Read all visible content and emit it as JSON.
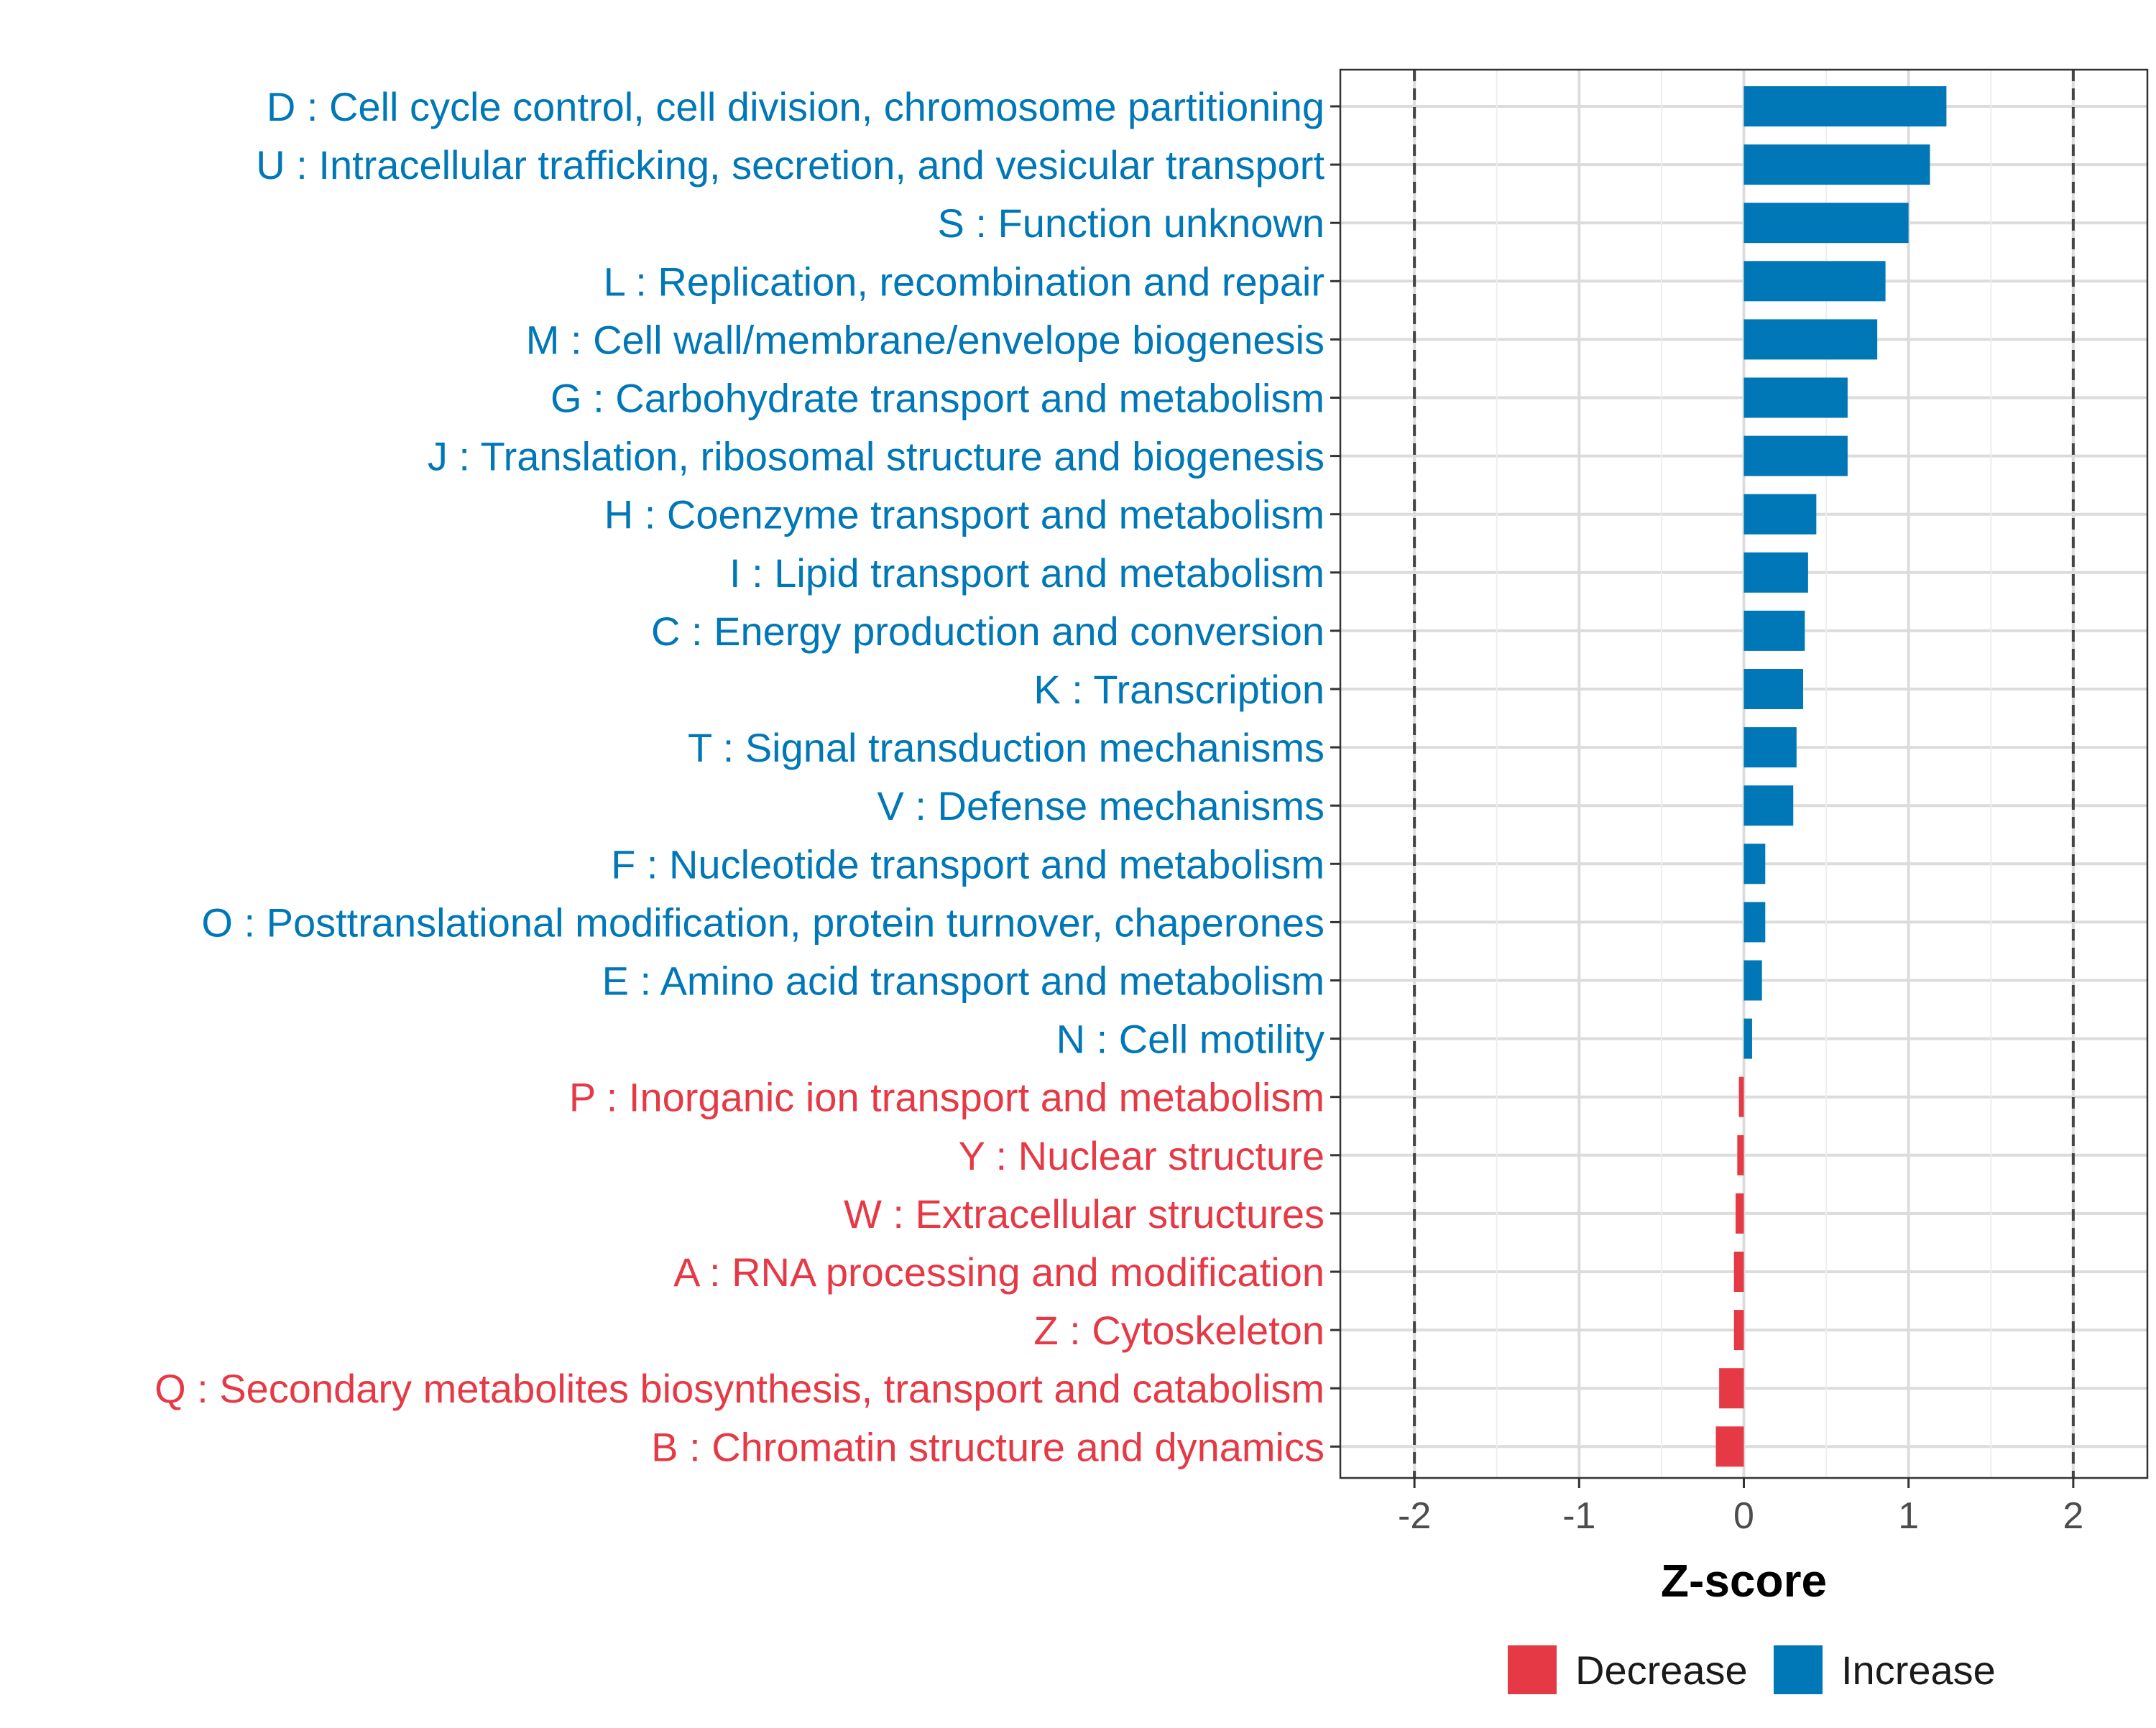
{
  "chart_data": {
    "type": "bar",
    "orientation": "horizontal",
    "xlabel": "Z-score",
    "ylabel": "",
    "xlim": [
      -2.45,
      2.45
    ],
    "x_ticks": [
      -2,
      -1,
      0,
      1,
      2
    ],
    "x_tick_labels": [
      "-2",
      "-1",
      "0",
      "1",
      "2"
    ],
    "reference_lines": [
      -2,
      2
    ],
    "grid": true,
    "colors": {
      "Increase": "#0077b6",
      "Decrease": "#e63946"
    },
    "bars": [
      {
        "label": "D : Cell cycle control, cell division, chromosome partitioning",
        "value": 1.23,
        "group": "Increase"
      },
      {
        "label": "U : Intracellular trafficking, secretion, and vesicular transport",
        "value": 1.13,
        "group": "Increase"
      },
      {
        "label": "S : Function unknown",
        "value": 1.0,
        "group": "Increase"
      },
      {
        "label": "L : Replication, recombination and repair",
        "value": 0.86,
        "group": "Increase"
      },
      {
        "label": "M : Cell wall/membrane/envelope biogenesis",
        "value": 0.81,
        "group": "Increase"
      },
      {
        "label": "G : Carbohydrate transport and metabolism",
        "value": 0.63,
        "group": "Increase"
      },
      {
        "label": "J : Translation, ribosomal structure and biogenesis",
        "value": 0.63,
        "group": "Increase"
      },
      {
        "label": "H : Coenzyme transport and metabolism",
        "value": 0.44,
        "group": "Increase"
      },
      {
        "label": "I : Lipid transport and metabolism",
        "value": 0.39,
        "group": "Increase"
      },
      {
        "label": "C : Energy production and conversion",
        "value": 0.37,
        "group": "Increase"
      },
      {
        "label": "K : Transcription",
        "value": 0.36,
        "group": "Increase"
      },
      {
        "label": "T : Signal transduction mechanisms",
        "value": 0.32,
        "group": "Increase"
      },
      {
        "label": "V : Defense mechanisms",
        "value": 0.3,
        "group": "Increase"
      },
      {
        "label": "F : Nucleotide transport and metabolism",
        "value": 0.13,
        "group": "Increase"
      },
      {
        "label": "O : Posttranslational modification, protein turnover, chaperones",
        "value": 0.13,
        "group": "Increase"
      },
      {
        "label": "E : Amino acid transport and metabolism",
        "value": 0.11,
        "group": "Increase"
      },
      {
        "label": "N : Cell motility",
        "value": 0.05,
        "group": "Increase"
      },
      {
        "label": "P : Inorganic ion transport and metabolism",
        "value": -0.03,
        "group": "Decrease"
      },
      {
        "label": "Y : Nuclear structure",
        "value": -0.04,
        "group": "Decrease"
      },
      {
        "label": "W : Extracellular structures",
        "value": -0.05,
        "group": "Decrease"
      },
      {
        "label": "A : RNA processing and modification",
        "value": -0.06,
        "group": "Decrease"
      },
      {
        "label": "Z : Cytoskeleton",
        "value": -0.06,
        "group": "Decrease"
      },
      {
        "label": "Q : Secondary metabolites biosynthesis, transport and catabolism",
        "value": -0.15,
        "group": "Decrease"
      },
      {
        "label": "B : Chromatin structure and dynamics",
        "value": -0.17,
        "group": "Decrease"
      }
    ],
    "legend": {
      "position": "bottom",
      "entries": [
        {
          "label": "Decrease",
          "group": "Decrease"
        },
        {
          "label": "Increase",
          "group": "Increase"
        }
      ]
    }
  }
}
